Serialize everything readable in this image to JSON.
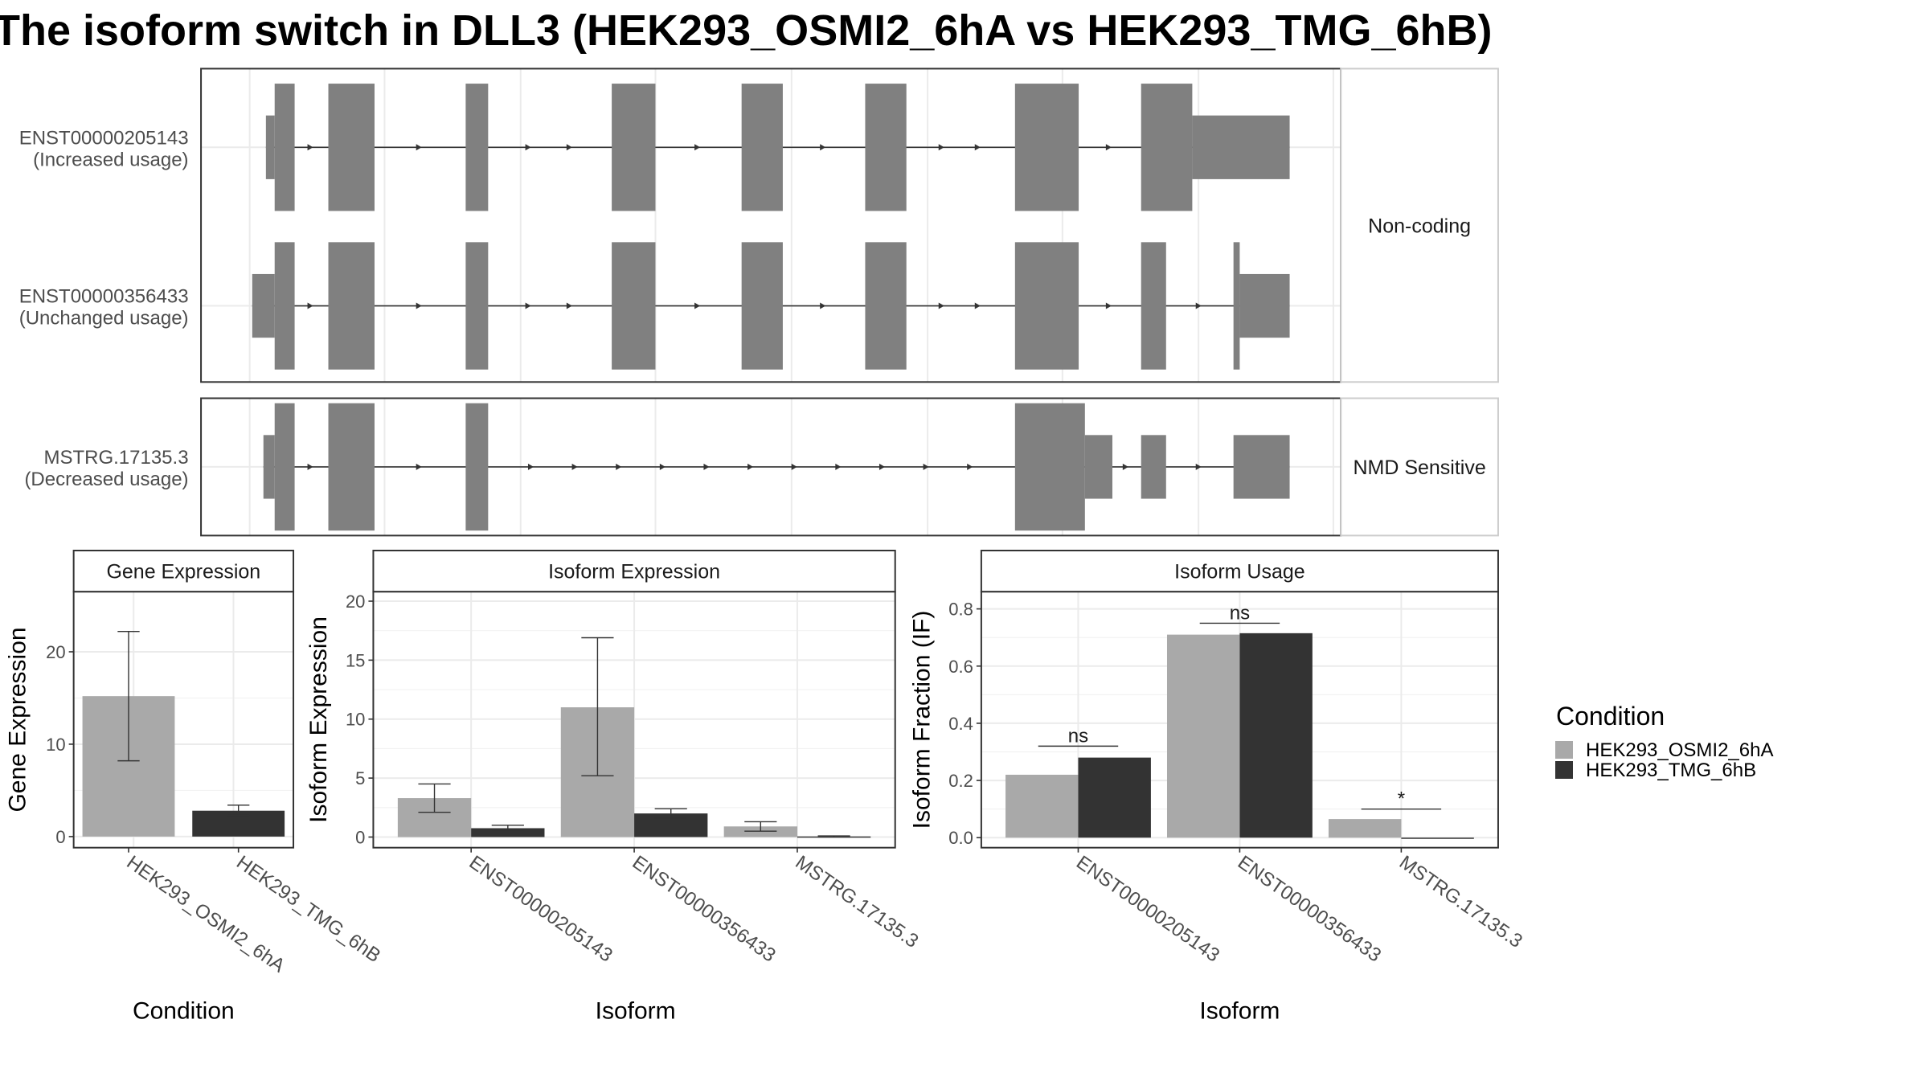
{
  "title": "The isoform switch in DLL3 (HEK293_OSMI2_6hA vs HEK293_TMG_6hB)",
  "colors": {
    "exon": "#808080",
    "condition_a": "#a9a9a9",
    "condition_b": "#333333",
    "panel_border": "#333333",
    "strip_bg": "#ffffff",
    "grid": "#ebebeb",
    "text": "#4d4d4d"
  },
  "transcript_structure": {
    "groups": [
      {
        "label": "Non-coding",
        "transcripts": [
          {
            "id": "ENST00000205143",
            "usage": "(Increased usage)",
            "exons": [
              [
                213,
                220,
                "utr"
              ],
              [
                220,
                236,
                "cds"
              ],
              [
                263,
                300,
                "cds"
              ],
              [
                373,
                391,
                "cds"
              ],
              [
                490,
                525,
                "cds"
              ],
              [
                594,
                627,
                "cds"
              ],
              [
                693,
                726,
                "cds"
              ],
              [
                813,
                864,
                "cds"
              ],
              [
                914,
                955,
                "cds"
              ],
              [
                955,
                1033,
                "utr"
              ]
            ]
          },
          {
            "id": "ENST00000356433",
            "usage": "(Unchanged usage)",
            "exons": [
              [
                202,
                220,
                "utr"
              ],
              [
                220,
                236,
                "cds"
              ],
              [
                263,
                300,
                "cds"
              ],
              [
                373,
                391,
                "cds"
              ],
              [
                490,
                525,
                "cds"
              ],
              [
                594,
                627,
                "cds"
              ],
              [
                693,
                726,
                "cds"
              ],
              [
                813,
                864,
                "cds"
              ],
              [
                914,
                934,
                "cds"
              ],
              [
                988,
                993,
                "cds"
              ],
              [
                993,
                1033,
                "utr"
              ]
            ]
          }
        ]
      },
      {
        "label": "NMD Sensitive",
        "transcripts": [
          {
            "id": "MSTRG.17135.3",
            "usage": "(Decreased usage)",
            "exons": [
              [
                211,
                220,
                "utr"
              ],
              [
                220,
                236,
                "cds"
              ],
              [
                263,
                300,
                "cds"
              ],
              [
                373,
                391,
                "cds"
              ],
              [
                813,
                869,
                "cds"
              ],
              [
                869,
                891,
                "utr"
              ],
              [
                914,
                934,
                "utr"
              ],
              [
                988,
                1033,
                "utr"
              ]
            ]
          }
        ]
      }
    ]
  },
  "chart_data": [
    {
      "type": "bar",
      "title": "Gene Expression",
      "xlabel": "Condition",
      "ylabel": "Gene Expression",
      "categories": [
        "HEK293_OSMI2_6hA",
        "HEK293_TMG_6hB"
      ],
      "values": [
        15.2,
        2.8
      ],
      "errors": [
        [
          8.2,
          22.2
        ],
        [
          2.3,
          3.4
        ]
      ],
      "ylim": [
        -1.2,
        26.5
      ],
      "yticks": [
        0,
        10,
        20
      ]
    },
    {
      "type": "bar",
      "title": "Isoform Expression",
      "xlabel": "Isoform",
      "ylabel": "Isoform Expression",
      "categories": [
        "ENST00000205143",
        "ENST00000356433",
        "MSTRG.17135.3"
      ],
      "series": [
        {
          "name": "HEK293_OSMI2_6hA",
          "values": [
            3.3,
            11.0,
            0.9
          ],
          "errors": [
            [
              2.1,
              4.5
            ],
            [
              5.2,
              16.9
            ],
            [
              0.5,
              1.3
            ]
          ]
        },
        {
          "name": "HEK293_TMG_6hB",
          "values": [
            0.75,
            2.0,
            0.05
          ],
          "errors": [
            [
              0.6,
              1.0
            ],
            [
              1.6,
              2.4
            ],
            [
              0.0,
              0.1
            ]
          ]
        }
      ],
      "ylim": [
        -0.9,
        20.8
      ],
      "yticks": [
        0,
        5,
        10,
        15,
        20
      ]
    },
    {
      "type": "bar",
      "title": "Isoform Usage",
      "xlabel": "Isoform",
      "ylabel": "Isoform Fraction (IF)",
      "categories": [
        "ENST00000205143",
        "ENST00000356433",
        "MSTRG.17135.3"
      ],
      "series": [
        {
          "name": "HEK293_OSMI2_6hA",
          "values": [
            0.22,
            0.71,
            0.065
          ]
        },
        {
          "name": "HEK293_TMG_6hB",
          "values": [
            0.28,
            0.715,
            0.0
          ]
        }
      ],
      "significance": [
        {
          "label": "ns",
          "y": 0.32
        },
        {
          "label": "ns",
          "y": 0.75
        },
        {
          "label": "*",
          "y": 0.1
        }
      ],
      "ylim": [
        -0.035,
        0.86
      ],
      "yticks": [
        0.0,
        0.2,
        0.4,
        0.6,
        0.8
      ]
    }
  ],
  "legend": {
    "title": "Condition",
    "position": "right",
    "items": [
      "HEK293_OSMI2_6hA",
      "HEK293_TMG_6hB"
    ]
  }
}
